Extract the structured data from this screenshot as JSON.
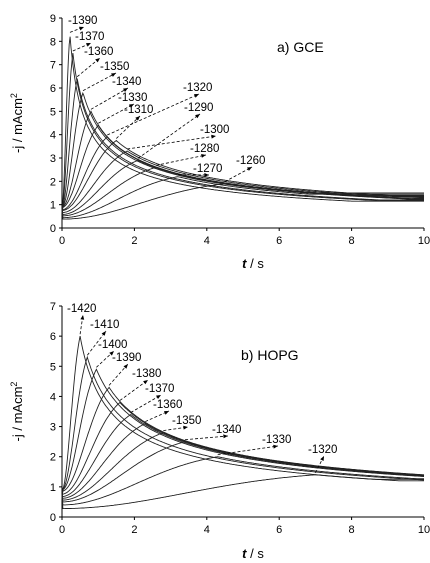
{
  "chart_data": [
    {
      "type": "line",
      "panel_label": "a) GCE",
      "xlabel": {
        "italic": "t",
        "rest": " / s"
      },
      "ylabel": "-j / mAcm",
      "ylabel_sup": "2",
      "xlim": [
        0,
        10
      ],
      "ylim": [
        0,
        9
      ],
      "xticks": [
        "0",
        "2",
        "4",
        "6",
        "8",
        "10"
      ],
      "yticks": [
        "0",
        "1",
        "2",
        "3",
        "4",
        "5",
        "6",
        "7",
        "8",
        "9"
      ],
      "series": [
        {
          "name": "-1390",
          "tmax": 0.22,
          "jmax": 8.3,
          "jtail": 1.15
        },
        {
          "name": "-1370",
          "tmax": 0.3,
          "jmax": 7.5,
          "jtail": 1.17
        },
        {
          "name": "-1360",
          "tmax": 0.42,
          "jmax": 6.4,
          "jtail": 1.2
        },
        {
          "name": "-1350",
          "tmax": 0.58,
          "jmax": 5.8,
          "jtail": 1.22
        },
        {
          "name": "-1340",
          "tmax": 0.8,
          "jmax": 5.0,
          "jtail": 1.25
        },
        {
          "name": "-1330",
          "tmax": 1.0,
          "jmax": 4.4,
          "jtail": 1.28
        },
        {
          "name": "-1320",
          "tmax": 1.25,
          "jmax": 3.9,
          "jtail": 1.3
        },
        {
          "name": "-1310",
          "tmax": 1.5,
          "jmax": 3.75,
          "jtail": 1.32
        },
        {
          "name": "-1300",
          "tmax": 1.8,
          "jmax": 3.3,
          "jtail": 1.35
        },
        {
          "name": "-1290",
          "tmax": 2.1,
          "jmax": 2.9,
          "jtail": 1.38
        },
        {
          "name": "-1280",
          "tmax": 2.6,
          "jmax": 2.6,
          "jtail": 1.4
        },
        {
          "name": "-1270",
          "tmax": 3.2,
          "jmax": 2.2,
          "jtail": 1.45
        },
        {
          "name": "-1260",
          "tmax": 4.5,
          "jmax": 1.9,
          "jtail": 1.5
        }
      ]
    },
    {
      "type": "line",
      "panel_label": "b) HOPG",
      "xlabel": {
        "italic": "t",
        "rest": " / s"
      },
      "ylabel": "-j / mAcm",
      "ylabel_sup": "2",
      "xlim": [
        0,
        10
      ],
      "ylim": [
        0,
        7
      ],
      "xticks": [
        "0",
        "2",
        "4",
        "6",
        "8",
        "10"
      ],
      "yticks": [
        "0",
        "1",
        "2",
        "3",
        "4",
        "5",
        "6",
        "7"
      ],
      "series": [
        {
          "name": "-1420",
          "tmax": 0.5,
          "jmax": 6.0,
          "jtail": 1.2
        },
        {
          "name": "-1410",
          "tmax": 0.7,
          "jmax": 5.3,
          "jtail": 1.2
        },
        {
          "name": "-1400",
          "tmax": 0.95,
          "jmax": 4.9,
          "jtail": 1.2
        },
        {
          "name": "-1390",
          "tmax": 1.3,
          "jmax": 4.3,
          "jtail": 1.22
        },
        {
          "name": "-1380",
          "tmax": 1.6,
          "jmax": 3.8,
          "jtail": 1.22
        },
        {
          "name": "-1370",
          "tmax": 1.9,
          "jmax": 3.4,
          "jtail": 1.23
        },
        {
          "name": "-1360",
          "tmax": 2.3,
          "jmax": 3.1,
          "jtail": 1.24
        },
        {
          "name": "-1350",
          "tmax": 2.8,
          "jmax": 2.8,
          "jtail": 1.25
        },
        {
          "name": "-1340",
          "tmax": 3.4,
          "jmax": 2.5,
          "jtail": 1.25
        },
        {
          "name": "-1330",
          "tmax": 4.3,
          "jmax": 2.0,
          "jtail": 1.27
        },
        {
          "name": "-1320",
          "tmax": 7.0,
          "jmax": 1.4,
          "jtail": 1.25
        }
      ]
    }
  ]
}
